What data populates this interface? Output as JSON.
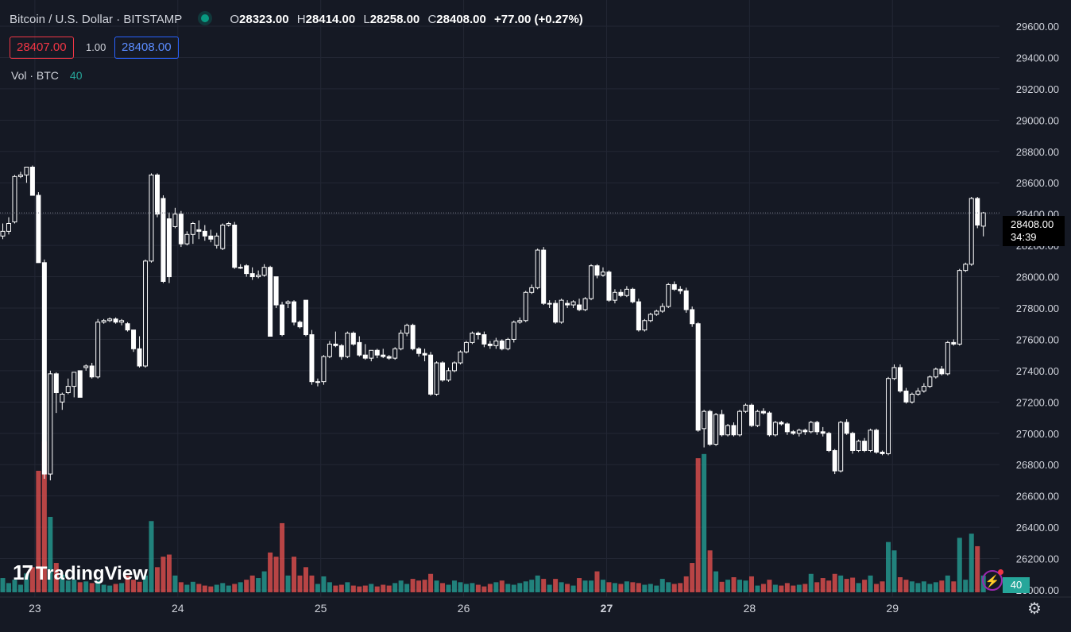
{
  "header": {
    "symbol": "Bitcoin / U.S. Dollar · BITSTAMP",
    "o_label": "O",
    "o_value": "28323.00",
    "h_label": "H",
    "h_value": "28414.00",
    "l_label": "L",
    "l_value": "28258.00",
    "c_label": "C",
    "c_value": "28408.00",
    "change": "+77.00 (+0.27%)",
    "market_status_color": "#089981"
  },
  "trade": {
    "bid": "28407.00",
    "spread": "1.00",
    "ask": "28408.00"
  },
  "volume_legend": {
    "label": "Vol · BTC",
    "value": "40"
  },
  "price_label": {
    "price": "28408.00",
    "countdown": "34:39"
  },
  "volume_label": "40",
  "branding": {
    "logo_text": "TradingView",
    "logo_mark": "17"
  },
  "colors": {
    "background": "#151924",
    "up_volume": "#26a69a",
    "down_volume": "#ef5350",
    "candle": "#ffffff"
  },
  "chart_data": {
    "type": "candlestick",
    "style": "hollow",
    "y_axis_ticks": [
      "29600.00",
      "29400.00",
      "29200.00",
      "29000.00",
      "28800.00",
      "28600.00",
      "28400.00",
      "28200.00",
      "28000.00",
      "27800.00",
      "27600.00",
      "27400.00",
      "27200.00",
      "27000.00",
      "26800.00",
      "26600.00",
      "26400.00",
      "26200.00",
      "26000.00"
    ],
    "ylim": [
      26000,
      29680
    ],
    "x_axis_ticks": [
      "23",
      "24",
      "25",
      "26",
      "27",
      "28",
      "29"
    ],
    "grid": true,
    "candles": [
      [
        28260,
        28340,
        28240,
        28290,
        34
      ],
      [
        28290,
        28380,
        28270,
        28340,
        22
      ],
      [
        28350,
        28650,
        28340,
        28640,
        30
      ],
      [
        28640,
        28670,
        28630,
        28650,
        18
      ],
      [
        28650,
        28700,
        28600,
        28700,
        45
      ],
      [
        28700,
        28710,
        28520,
        28520,
        60
      ],
      [
        28520,
        28540,
        28090,
        28090,
        290
      ],
      [
        28090,
        28110,
        26710,
        26740,
        360
      ],
      [
        26740,
        27400,
        26700,
        27380,
        180
      ],
      [
        27380,
        27390,
        27130,
        27260,
        70
      ],
      [
        27200,
        27260,
        27150,
        27250,
        42
      ],
      [
        27260,
        27350,
        27250,
        27300,
        28
      ],
      [
        27300,
        27390,
        27230,
        27390,
        30
      ],
      [
        27400,
        27400,
        27230,
        27230,
        24
      ],
      [
        27420,
        27440,
        27400,
        27430,
        26
      ],
      [
        27430,
        27450,
        27350,
        27360,
        22
      ],
      [
        27360,
        27730,
        27350,
        27710,
        28
      ],
      [
        27710,
        27730,
        27700,
        27720,
        18
      ],
      [
        27720,
        27740,
        27710,
        27730,
        16
      ],
      [
        27730,
        27740,
        27700,
        27710,
        20
      ],
      [
        27710,
        27730,
        27690,
        27720,
        22
      ],
      [
        27700,
        27710,
        27650,
        27660,
        40
      ],
      [
        27660,
        27660,
        27520,
        27540,
        30
      ],
      [
        27540,
        27620,
        27420,
        27430,
        25
      ],
      [
        27430,
        28110,
        27420,
        28100,
        40
      ],
      [
        28100,
        28660,
        28090,
        28650,
        170
      ],
      [
        28650,
        28660,
        28380,
        28400,
        60
      ],
      [
        28500,
        28520,
        27960,
        27970,
        85
      ],
      [
        28370,
        28410,
        27960,
        28000,
        90
      ],
      [
        28320,
        28440,
        28310,
        28400,
        40
      ],
      [
        28400,
        28420,
        28190,
        28210,
        24
      ],
      [
        28210,
        28290,
        28200,
        28270,
        18
      ],
      [
        28270,
        28350,
        28210,
        28340,
        25
      ],
      [
        28300,
        28360,
        28240,
        28290,
        20
      ],
      [
        28290,
        28330,
        28230,
        28260,
        16
      ],
      [
        28260,
        28300,
        28220,
        28240,
        14
      ],
      [
        28200,
        28280,
        28180,
        28260,
        18
      ],
      [
        28180,
        28340,
        28170,
        28330,
        22
      ],
      [
        28330,
        28350,
        28320,
        28340,
        16
      ],
      [
        28330,
        28350,
        28050,
        28060,
        20
      ],
      [
        28060,
        28080,
        28050,
        28060,
        24
      ],
      [
        28070,
        28080,
        28000,
        28020,
        30
      ],
      [
        28020,
        28060,
        27980,
        28000,
        40
      ],
      [
        28000,
        28040,
        27990,
        28010,
        34
      ],
      [
        28010,
        28080,
        28000,
        28060,
        50
      ],
      [
        28060,
        28070,
        27620,
        27620,
        95
      ],
      [
        28000,
        28000,
        27800,
        27820,
        85
      ],
      [
        27820,
        27840,
        27620,
        27630,
        165
      ],
      [
        27830,
        27850,
        27800,
        27840,
        40
      ],
      [
        27840,
        27850,
        27690,
        27710,
        85
      ],
      [
        27710,
        27720,
        27670,
        27680,
        40
      ],
      [
        27850,
        27850,
        27620,
        27630,
        60
      ],
      [
        27630,
        27660,
        27310,
        27330,
        40
      ],
      [
        27330,
        27350,
        27300,
        27330,
        20
      ],
      [
        27330,
        27500,
        27310,
        27490,
        38
      ],
      [
        27490,
        27590,
        27480,
        27570,
        24
      ],
      [
        27570,
        27650,
        27550,
        27560,
        16
      ],
      [
        27560,
        27570,
        27470,
        27490,
        18
      ],
      [
        27490,
        27650,
        27480,
        27640,
        24
      ],
      [
        27640,
        27650,
        27560,
        27570,
        16
      ],
      [
        27580,
        27620,
        27490,
        27500,
        14
      ],
      [
        27500,
        27570,
        27470,
        27480,
        16
      ],
      [
        27480,
        27530,
        27460,
        27530,
        20
      ],
      [
        27530,
        27540,
        27480,
        27500,
        14
      ],
      [
        27500,
        27540,
        27480,
        27490,
        18
      ],
      [
        27490,
        27500,
        27470,
        27480,
        16
      ],
      [
        27480,
        27550,
        27470,
        27540,
        22
      ],
      [
        27540,
        27660,
        27530,
        27640,
        28
      ],
      [
        27640,
        27700,
        27620,
        27690,
        20
      ],
      [
        27690,
        27700,
        27530,
        27540,
        32
      ],
      [
        27540,
        27550,
        27490,
        27510,
        28
      ],
      [
        27510,
        27540,
        27460,
        27500,
        30
      ],
      [
        27500,
        27520,
        27240,
        27250,
        44
      ],
      [
        27250,
        27460,
        27240,
        27450,
        28
      ],
      [
        27450,
        27460,
        27330,
        27340,
        22
      ],
      [
        27340,
        27420,
        27330,
        27400,
        18
      ],
      [
        27400,
        27460,
        27390,
        27450,
        28
      ],
      [
        27450,
        27530,
        27440,
        27520,
        24
      ],
      [
        27520,
        27590,
        27510,
        27580,
        20
      ],
      [
        27580,
        27650,
        27570,
        27640,
        22
      ],
      [
        27640,
        27650,
        27600,
        27630,
        18
      ],
      [
        27630,
        27650,
        27550,
        27570,
        14
      ],
      [
        27570,
        27590,
        27540,
        27560,
        20
      ],
      [
        27560,
        27610,
        27540,
        27590,
        24
      ],
      [
        27590,
        27600,
        27530,
        27540,
        28
      ],
      [
        27540,
        27610,
        27530,
        27600,
        20
      ],
      [
        27600,
        27720,
        27580,
        27710,
        18
      ],
      [
        27710,
        27740,
        27700,
        27720,
        22
      ],
      [
        27720,
        27910,
        27710,
        27900,
        26
      ],
      [
        27900,
        27950,
        27890,
        27930,
        30
      ],
      [
        27930,
        28180,
        27920,
        28170,
        40
      ],
      [
        28170,
        28190,
        27820,
        27830,
        32
      ],
      [
        27830,
        27850,
        27800,
        27830,
        18
      ],
      [
        27830,
        27850,
        27700,
        27710,
        32
      ],
      [
        27710,
        27860,
        27700,
        27850,
        24
      ],
      [
        27830,
        27850,
        27800,
        27820,
        20
      ],
      [
        27820,
        27850,
        27800,
        27840,
        16
      ],
      [
        27820,
        27860,
        27780,
        27790,
        34
      ],
      [
        27790,
        27870,
        27780,
        27860,
        28
      ],
      [
        27860,
        28080,
        27850,
        28070,
        28
      ],
      [
        28070,
        28080,
        27990,
        28010,
        50
      ],
      [
        28010,
        28060,
        28000,
        28030,
        30
      ],
      [
        28030,
        28040,
        27840,
        27850,
        24
      ],
      [
        27850,
        27920,
        27830,
        27900,
        22
      ],
      [
        27900,
        27920,
        27870,
        27880,
        20
      ],
      [
        27880,
        27940,
        27870,
        27920,
        26
      ],
      [
        27920,
        27930,
        27830,
        27840,
        24
      ],
      [
        27840,
        27860,
        27650,
        27660,
        22
      ],
      [
        27660,
        27730,
        27650,
        27720,
        18
      ],
      [
        27720,
        27770,
        27710,
        27760,
        20
      ],
      [
        27760,
        27790,
        27750,
        27780,
        16
      ],
      [
        27780,
        27830,
        27770,
        27810,
        32
      ],
      [
        27810,
        27960,
        27800,
        27950,
        24
      ],
      [
        27950,
        27970,
        27910,
        27920,
        20
      ],
      [
        27920,
        27940,
        27890,
        27910,
        22
      ],
      [
        27910,
        27930,
        27770,
        27790,
        38
      ],
      [
        27790,
        27810,
        27680,
        27700,
        70
      ],
      [
        27700,
        27710,
        27010,
        27020,
        320
      ],
      [
        27030,
        27150,
        26910,
        27140,
        330
      ],
      [
        27140,
        27150,
        26920,
        26930,
        100
      ],
      [
        26930,
        27130,
        26920,
        27120,
        50
      ],
      [
        27120,
        27150,
        26980,
        26990,
        25
      ],
      [
        26990,
        27060,
        26980,
        27050,
        30
      ],
      [
        27050,
        27070,
        26980,
        26990,
        36
      ],
      [
        26990,
        27150,
        26980,
        27140,
        30
      ],
      [
        27140,
        27190,
        27130,
        27180,
        28
      ],
      [
        27180,
        27190,
        27040,
        27050,
        38
      ],
      [
        27050,
        27150,
        27040,
        27140,
        16
      ],
      [
        27140,
        27160,
        27120,
        27130,
        20
      ],
      [
        27130,
        27140,
        26980,
        26990,
        30
      ],
      [
        26990,
        27080,
        26980,
        27070,
        18
      ],
      [
        27070,
        27080,
        27050,
        27060,
        16
      ],
      [
        27060,
        27070,
        26990,
        27010,
        22
      ],
      [
        27010,
        27020,
        26990,
        27000,
        16
      ],
      [
        27000,
        27030,
        26980,
        27020,
        18
      ],
      [
        27020,
        27030,
        26990,
        27010,
        20
      ],
      [
        27010,
        27080,
        27000,
        27070,
        44
      ],
      [
        27070,
        27080,
        26990,
        27010,
        24
      ],
      [
        27010,
        27040,
        26980,
        27000,
        34
      ],
      [
        27000,
        27010,
        26880,
        26890,
        28
      ],
      [
        26890,
        26900,
        26740,
        26760,
        44
      ],
      [
        26760,
        27080,
        26750,
        27070,
        40
      ],
      [
        27070,
        27090,
        26990,
        27000,
        32
      ],
      [
        27000,
        27010,
        26870,
        26890,
        35
      ],
      [
        26890,
        26960,
        26880,
        26950,
        22
      ],
      [
        26950,
        26970,
        26880,
        26890,
        30
      ],
      [
        26890,
        27030,
        26880,
        27020,
        40
      ],
      [
        27020,
        27030,
        26870,
        26880,
        20
      ],
      [
        26880,
        26890,
        26860,
        26870,
        26
      ],
      [
        26870,
        27360,
        26860,
        27350,
        120
      ],
      [
        27350,
        27440,
        27340,
        27420,
        100
      ],
      [
        27420,
        27440,
        27260,
        27270,
        36
      ],
      [
        27270,
        27290,
        27190,
        27200,
        30
      ],
      [
        27200,
        27260,
        27190,
        27250,
        26
      ],
      [
        27250,
        27290,
        27240,
        27270,
        22
      ],
      [
        27270,
        27320,
        27260,
        27300,
        26
      ],
      [
        27300,
        27370,
        27290,
        27360,
        20
      ],
      [
        27360,
        27420,
        27350,
        27410,
        24
      ],
      [
        27410,
        27430,
        27370,
        27380,
        28
      ],
      [
        27380,
        27590,
        27370,
        27580,
        40
      ],
      [
        27580,
        27600,
        27560,
        27570,
        26
      ],
      [
        27570,
        28050,
        27560,
        28040,
        130
      ],
      [
        28040,
        28090,
        28030,
        28080,
        30
      ],
      [
        28080,
        28510,
        28070,
        28500,
        140
      ],
      [
        28500,
        28510,
        28310,
        28330,
        110
      ],
      [
        28323,
        28414,
        28258,
        28408,
        40
      ]
    ]
  }
}
